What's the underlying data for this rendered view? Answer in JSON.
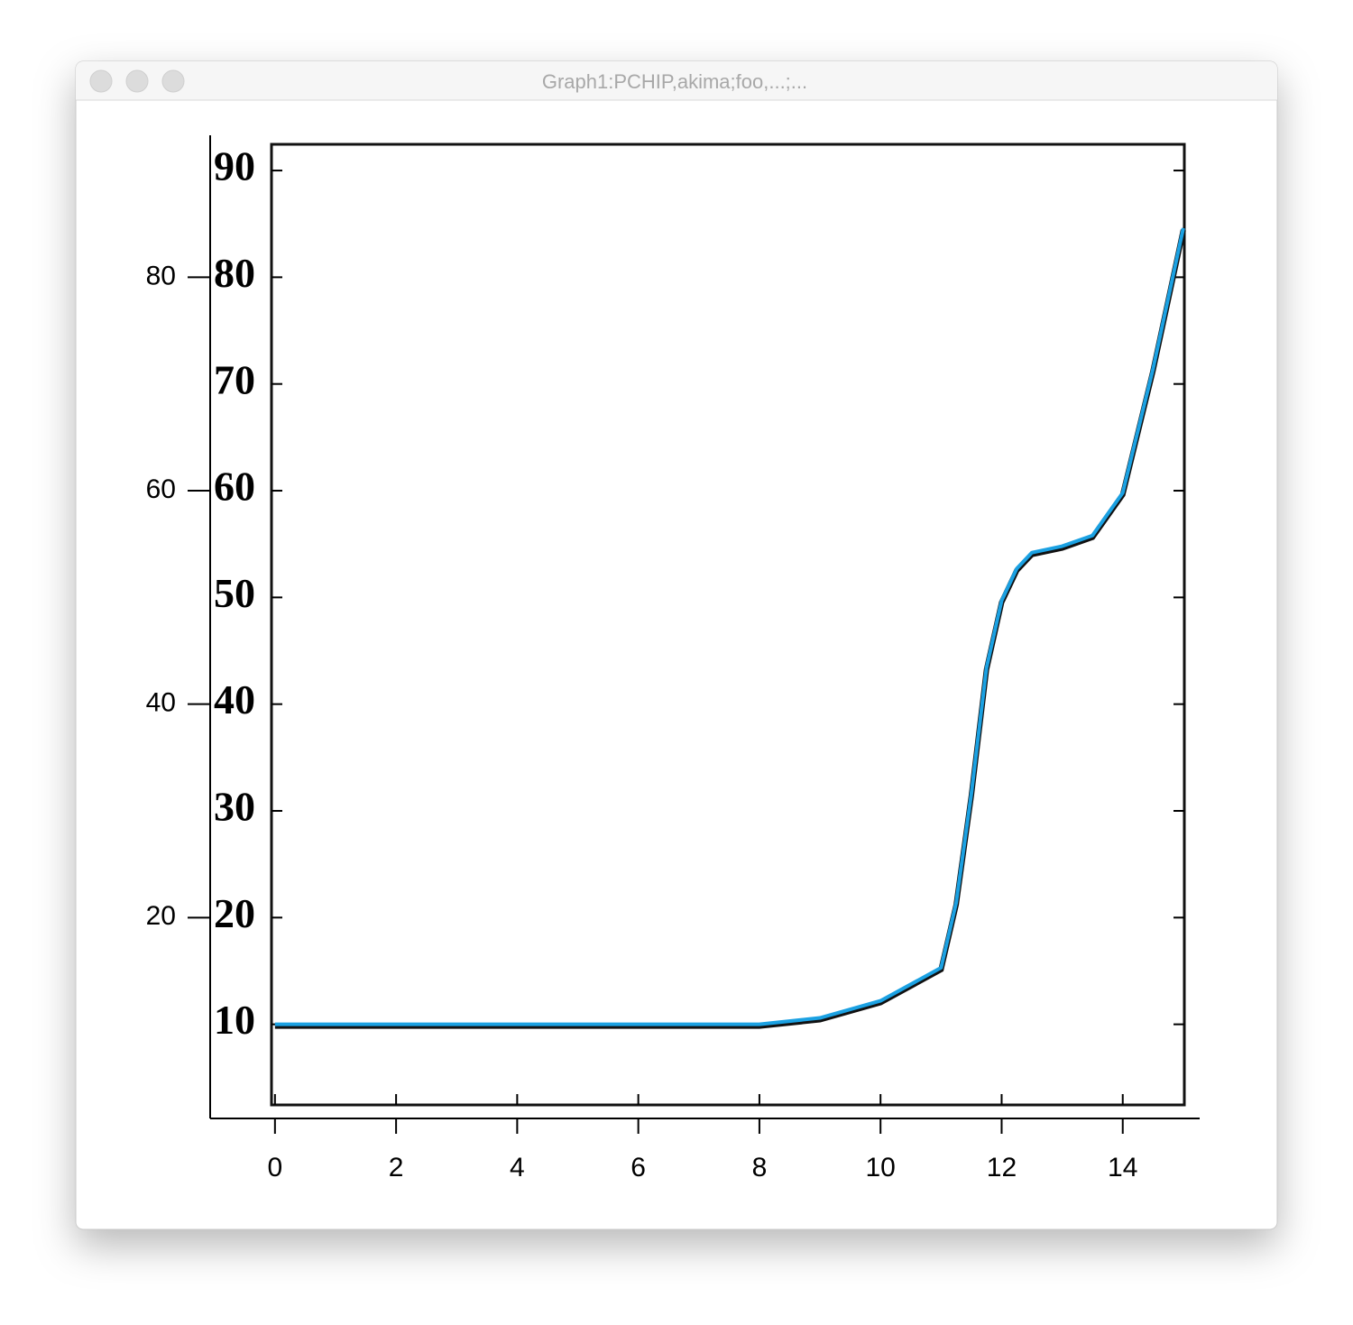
{
  "window": {
    "title": "Graph1:PCHIP,akima;foo,...;..."
  },
  "chart_data": {
    "type": "line",
    "x": [
      0,
      1,
      2,
      3,
      4,
      5,
      6,
      7,
      8,
      9,
      10,
      11,
      11.25,
      11.5,
      11.75,
      12,
      12.25,
      12.5,
      13,
      13.5,
      14,
      14.5,
      15
    ],
    "series": [
      {
        "color": "#1ba1e2",
        "values": [
          10,
          10,
          10,
          10,
          10,
          10,
          10,
          10,
          10,
          10.6,
          12.2,
          15.3,
          21.4,
          31.6,
          43.4,
          49.7,
          52.7,
          54.2,
          54.8,
          55.8,
          59.8,
          71.4,
          84.6
        ]
      }
    ],
    "xlim": [
      -1.07,
      15.27
    ],
    "ylim": [
      1.18,
      93.3
    ],
    "xticks": [
      0,
      2,
      4,
      6,
      8,
      10,
      12,
      14
    ],
    "yticks": [
      20,
      40,
      60,
      80
    ]
  },
  "scan": {
    "yticks": [
      10,
      20,
      30,
      40,
      50,
      60,
      70,
      80,
      90
    ]
  }
}
